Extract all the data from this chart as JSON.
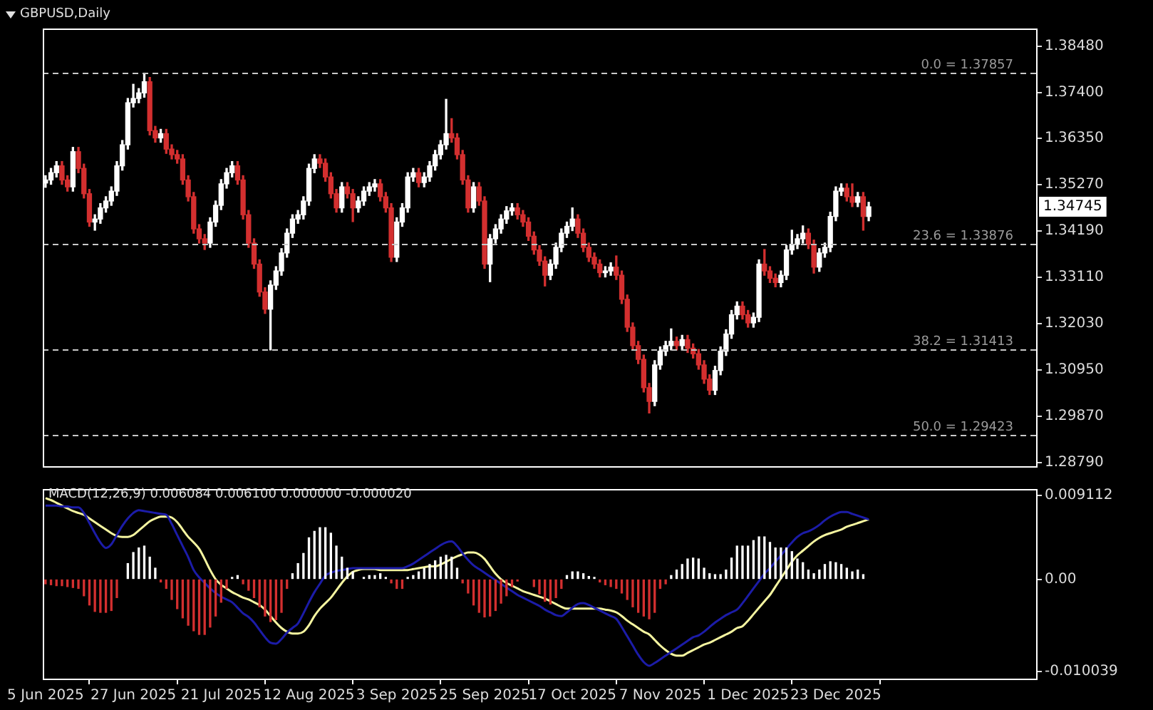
{
  "chart_data": [
    {
      "type": "candlestick",
      "title": "GBPUSD,Daily",
      "categories": [
        null,
        null,
        null,
        null,
        null,
        null,
        null,
        null,
        null,
        null,
        null,
        null,
        null,
        null,
        null,
        null,
        null,
        null,
        null,
        null,
        null,
        null,
        null,
        null,
        null,
        null,
        null,
        null,
        null,
        null,
        null,
        null,
        null,
        null,
        null,
        null,
        null,
        null,
        null,
        null,
        null,
        null,
        null,
        null,
        null,
        null,
        null,
        null,
        null,
        null,
        null,
        null,
        null,
        null,
        null,
        null,
        null,
        null,
        null,
        null,
        null,
        null,
        null,
        null,
        null,
        null,
        null,
        null,
        null,
        null,
        null,
        null,
        null,
        null,
        null,
        null,
        null,
        null,
        null,
        null,
        null,
        null,
        null,
        null,
        null,
        null,
        null,
        null,
        null,
        null,
        null,
        null,
        null,
        null,
        null,
        null,
        null,
        null,
        null,
        null,
        null,
        null,
        null,
        null,
        null,
        null,
        null,
        null,
        null,
        null,
        null,
        null,
        null,
        null,
        null,
        null,
        null,
        null,
        null,
        null,
        null,
        null,
        null,
        null,
        null,
        null,
        null,
        null,
        null,
        null,
        null,
        null,
        null,
        null,
        null,
        null,
        null,
        null,
        null,
        null,
        null,
        null,
        null,
        null,
        null,
        null,
        null,
        null,
        null,
        null,
        null,
        null,
        null,
        null,
        null,
        null,
        null,
        null,
        null,
        null,
        null,
        null,
        null,
        null,
        null,
        null,
        null,
        null,
        null,
        null,
        null,
        null,
        null,
        null,
        null,
        null,
        null,
        null,
        null,
        null,
        null
      ],
      "ohlc": [
        [
          1.353,
          1.3547,
          1.352,
          1.3537
        ],
        [
          1.3537,
          1.3564,
          1.3527,
          1.3554
        ],
        [
          1.3554,
          1.358,
          1.3544,
          1.357
        ],
        [
          1.357,
          1.358,
          1.3527,
          1.3537
        ],
        [
          1.3537,
          1.3547,
          1.3511,
          1.3521
        ],
        [
          1.3521,
          1.3613,
          1.3511,
          1.3603
        ],
        [
          1.3603,
          1.3613,
          1.3554,
          1.3564
        ],
        [
          1.3564,
          1.3574,
          1.3495,
          1.3505
        ],
        [
          1.3505,
          1.3515,
          1.3429,
          1.3439
        ],
        [
          1.3439,
          1.3456,
          1.342,
          1.3446
        ],
        [
          1.3446,
          1.3482,
          1.3436,
          1.3472
        ],
        [
          1.3472,
          1.3498,
          1.3462,
          1.3488
        ],
        [
          1.3488,
          1.3521,
          1.3478,
          1.3511
        ],
        [
          1.3511,
          1.358,
          1.3501,
          1.357
        ],
        [
          1.357,
          1.3629,
          1.356,
          1.3619
        ],
        [
          1.3619,
          1.3727,
          1.3609,
          1.3717
        ],
        [
          1.3717,
          1.376,
          1.3707,
          1.3727
        ],
        [
          1.3727,
          1.375,
          1.3717,
          1.374
        ],
        [
          1.374,
          1.3786,
          1.373,
          1.3766
        ],
        [
          1.3766,
          1.3776,
          1.3642,
          1.3652
        ],
        [
          1.3652,
          1.3662,
          1.3625,
          1.3635
        ],
        [
          1.3635,
          1.3655,
          1.3625,
          1.3645
        ],
        [
          1.3645,
          1.3655,
          1.3599,
          1.3609
        ],
        [
          1.3609,
          1.3619,
          1.3586,
          1.3596
        ],
        [
          1.3596,
          1.3606,
          1.3576,
          1.3586
        ],
        [
          1.3586,
          1.3596,
          1.3527,
          1.3537
        ],
        [
          1.3537,
          1.3547,
          1.3488,
          1.3498
        ],
        [
          1.3498,
          1.3508,
          1.3413,
          1.3423
        ],
        [
          1.3423,
          1.3433,
          1.339,
          1.34
        ],
        [
          1.34,
          1.341,
          1.3375,
          1.339
        ],
        [
          1.339,
          1.3449,
          1.338,
          1.3439
        ],
        [
          1.3439,
          1.3488,
          1.3429,
          1.3478
        ],
        [
          1.3478,
          1.3538,
          1.3468,
          1.3528
        ],
        [
          1.3528,
          1.3564,
          1.3518,
          1.3554
        ],
        [
          1.3554,
          1.358,
          1.3544,
          1.357
        ],
        [
          1.357,
          1.358,
          1.3527,
          1.3537
        ],
        [
          1.3537,
          1.3547,
          1.3446,
          1.3456
        ],
        [
          1.3456,
          1.3466,
          1.338,
          1.339
        ],
        [
          1.339,
          1.34,
          1.3331,
          1.3341
        ],
        [
          1.3341,
          1.3351,
          1.3266,
          1.3276
        ],
        [
          1.3276,
          1.3286,
          1.3226,
          1.3236
        ],
        [
          1.3236,
          1.3302,
          1.3141,
          1.3292
        ],
        [
          1.3292,
          1.3335,
          1.3282,
          1.3325
        ],
        [
          1.3325,
          1.3377,
          1.3315,
          1.3367
        ],
        [
          1.3367,
          1.3423,
          1.3357,
          1.3413
        ],
        [
          1.3413,
          1.3456,
          1.3403,
          1.3446
        ],
        [
          1.3446,
          1.3466,
          1.3436,
          1.3456
        ],
        [
          1.3456,
          1.3498,
          1.3446,
          1.3488
        ],
        [
          1.3488,
          1.3574,
          1.3478,
          1.3564
        ],
        [
          1.3564,
          1.3596,
          1.3554,
          1.3586
        ],
        [
          1.3586,
          1.3596,
          1.3566,
          1.3576
        ],
        [
          1.3576,
          1.3586,
          1.3534,
          1.3544
        ],
        [
          1.3544,
          1.3554,
          1.3495,
          1.3505
        ],
        [
          1.3505,
          1.3515,
          1.3462,
          1.3472
        ],
        [
          1.3472,
          1.3531,
          1.3462,
          1.3521
        ],
        [
          1.3521,
          1.3531,
          1.3495,
          1.3505
        ],
        [
          1.3505,
          1.3515,
          1.344,
          1.3472
        ],
        [
          1.3472,
          1.3498,
          1.3462,
          1.3488
        ],
        [
          1.3488,
          1.3521,
          1.3478,
          1.3511
        ],
        [
          1.3511,
          1.3531,
          1.3501,
          1.3521
        ],
        [
          1.3521,
          1.3538,
          1.3511,
          1.3528
        ],
        [
          1.3528,
          1.3538,
          1.3488,
          1.3498
        ],
        [
          1.3498,
          1.3508,
          1.3462,
          1.3472
        ],
        [
          1.3472,
          1.3482,
          1.3347,
          1.3357
        ],
        [
          1.3357,
          1.3449,
          1.3347,
          1.3439
        ],
        [
          1.3439,
          1.3482,
          1.3429,
          1.3472
        ],
        [
          1.3472,
          1.3554,
          1.3462,
          1.3544
        ],
        [
          1.3544,
          1.3564,
          1.3534,
          1.3554
        ],
        [
          1.3554,
          1.3564,
          1.3521,
          1.3531
        ],
        [
          1.3531,
          1.3554,
          1.3521,
          1.3544
        ],
        [
          1.3544,
          1.358,
          1.3534,
          1.357
        ],
        [
          1.357,
          1.3606,
          1.356,
          1.3596
        ],
        [
          1.3596,
          1.3629,
          1.3586,
          1.3619
        ],
        [
          1.3619,
          1.3725,
          1.3609,
          1.3645
        ],
        [
          1.3645,
          1.368,
          1.3625,
          1.3635
        ],
        [
          1.3635,
          1.3645,
          1.3586,
          1.3596
        ],
        [
          1.3596,
          1.3606,
          1.3527,
          1.3537
        ],
        [
          1.3537,
          1.3547,
          1.3462,
          1.3472
        ],
        [
          1.3472,
          1.3531,
          1.3462,
          1.3521
        ],
        [
          1.3521,
          1.3531,
          1.3478,
          1.3488
        ],
        [
          1.3488,
          1.3498,
          1.3331,
          1.3341
        ],
        [
          1.3341,
          1.341,
          1.33,
          1.34
        ],
        [
          1.34,
          1.3433,
          1.339,
          1.3423
        ],
        [
          1.3423,
          1.3456,
          1.3413,
          1.3446
        ],
        [
          1.3446,
          1.3475,
          1.3436,
          1.3465
        ],
        [
          1.3465,
          1.3482,
          1.3455,
          1.3472
        ],
        [
          1.3472,
          1.3482,
          1.3446,
          1.3456
        ],
        [
          1.3456,
          1.3466,
          1.3429,
          1.3439
        ],
        [
          1.3439,
          1.3449,
          1.3396,
          1.3406
        ],
        [
          1.3406,
          1.3416,
          1.3364,
          1.3374
        ],
        [
          1.3374,
          1.3384,
          1.3338,
          1.3348
        ],
        [
          1.3348,
          1.3358,
          1.329,
          1.3315
        ],
        [
          1.3315,
          1.3351,
          1.3305,
          1.3341
        ],
        [
          1.3341,
          1.339,
          1.3331,
          1.338
        ],
        [
          1.338,
          1.3423,
          1.337,
          1.3413
        ],
        [
          1.3413,
          1.3439,
          1.3403,
          1.3429
        ],
        [
          1.3429,
          1.3472,
          1.3419,
          1.3446
        ],
        [
          1.3446,
          1.3456,
          1.3403,
          1.3413
        ],
        [
          1.3413,
          1.3423,
          1.337,
          1.338
        ],
        [
          1.338,
          1.339,
          1.3347,
          1.3357
        ],
        [
          1.3357,
          1.3367,
          1.3331,
          1.3341
        ],
        [
          1.3341,
          1.3351,
          1.3311,
          1.3321
        ],
        [
          1.3321,
          1.3335,
          1.3311,
          1.3325
        ],
        [
          1.3325,
          1.3344,
          1.3315,
          1.3334
        ],
        [
          1.3334,
          1.336,
          1.3305,
          1.3315
        ],
        [
          1.3315,
          1.3325,
          1.3249,
          1.3259
        ],
        [
          1.3259,
          1.3269,
          1.3184,
          1.3194
        ],
        [
          1.3194,
          1.3204,
          1.3141,
          1.3151
        ],
        [
          1.3151,
          1.3161,
          1.3109,
          1.3119
        ],
        [
          1.3119,
          1.3129,
          1.3043,
          1.3053
        ],
        [
          1.3053,
          1.3063,
          1.2994,
          1.3021
        ],
        [
          1.3021,
          1.3116,
          1.3011,
          1.3106
        ],
        [
          1.3106,
          1.3148,
          1.3096,
          1.3138
        ],
        [
          1.3138,
          1.3161,
          1.3128,
          1.3151
        ],
        [
          1.3151,
          1.319,
          1.3141,
          1.3161
        ],
        [
          1.3161,
          1.3171,
          1.3141,
          1.3151
        ],
        [
          1.3151,
          1.3175,
          1.3141,
          1.3165
        ],
        [
          1.3165,
          1.3175,
          1.3135,
          1.3145
        ],
        [
          1.3145,
          1.3155,
          1.3122,
          1.3132
        ],
        [
          1.3132,
          1.3142,
          1.3096,
          1.3106
        ],
        [
          1.3106,
          1.3116,
          1.3063,
          1.3073
        ],
        [
          1.3073,
          1.3083,
          1.3037,
          1.3047
        ],
        [
          1.3047,
          1.3103,
          1.3037,
          1.3093
        ],
        [
          1.3093,
          1.3148,
          1.3083,
          1.3138
        ],
        [
          1.3138,
          1.3188,
          1.3128,
          1.3178
        ],
        [
          1.3178,
          1.3233,
          1.3168,
          1.3223
        ],
        [
          1.3223,
          1.3253,
          1.3213,
          1.3243
        ],
        [
          1.3243,
          1.3253,
          1.3213,
          1.3223
        ],
        [
          1.3223,
          1.3233,
          1.3194,
          1.3204
        ],
        [
          1.3204,
          1.3227,
          1.3194,
          1.3217
        ],
        [
          1.3217,
          1.3351,
          1.3207,
          1.3341
        ],
        [
          1.3341,
          1.3375,
          1.3315,
          1.3325
        ],
        [
          1.3325,
          1.3335,
          1.3298,
          1.3308
        ],
        [
          1.3308,
          1.3318,
          1.3288,
          1.3298
        ],
        [
          1.3298,
          1.3325,
          1.3288,
          1.3315
        ],
        [
          1.3315,
          1.3384,
          1.3305,
          1.3374
        ],
        [
          1.3374,
          1.342,
          1.3364,
          1.3387
        ],
        [
          1.3387,
          1.341,
          1.3377,
          1.34
        ],
        [
          1.34,
          1.343,
          1.339,
          1.3413
        ],
        [
          1.3413,
          1.3423,
          1.3377,
          1.3387
        ],
        [
          1.3387,
          1.3397,
          1.332,
          1.3334
        ],
        [
          1.3334,
          1.3377,
          1.3324,
          1.3367
        ],
        [
          1.3367,
          1.339,
          1.3357,
          1.338
        ],
        [
          1.338,
          1.3462,
          1.337,
          1.3452
        ],
        [
          1.3452,
          1.3521,
          1.3442,
          1.3511
        ],
        [
          1.3511,
          1.3528,
          1.3501,
          1.3518
        ],
        [
          1.3518,
          1.3528,
          1.3488,
          1.3498
        ],
        [
          1.3498,
          1.3528,
          1.3475,
          1.3485
        ],
        [
          1.3485,
          1.3508,
          1.3475,
          1.3498
        ],
        [
          1.3498,
          1.3508,
          1.342,
          1.3452
        ],
        [
          1.3452,
          1.3485,
          1.3442,
          1.34745
        ],
        null,
        null,
        null,
        null,
        null,
        null,
        null,
        null,
        null,
        null,
        null,
        null,
        null,
        null,
        null,
        null,
        null,
        null,
        null,
        null,
        null,
        null,
        null,
        null,
        null,
        null,
        null,
        null,
        null,
        null
      ],
      "colors": [
        "#ffffff",
        "#ffffff",
        "#ffffff",
        "#d32f2f",
        "#d32f2f",
        "#ffffff",
        "#d32f2f",
        "#d32f2f",
        "#d32f2f",
        "#ffffff",
        "#ffffff",
        "#ffffff",
        "#ffffff",
        "#ffffff",
        "#ffffff",
        "#ffffff",
        "#ffffff",
        "#ffffff",
        "#ffffff",
        "#d32f2f",
        "#d32f2f",
        "#ffffff",
        "#d32f2f",
        "#d32f2f",
        "#d32f2f",
        "#d32f2f",
        "#d32f2f",
        "#d32f2f",
        "#d32f2f",
        "#d32f2f",
        "#ffffff",
        "#ffffff",
        "#ffffff",
        "#ffffff",
        "#ffffff",
        "#d32f2f",
        "#d32f2f",
        "#d32f2f",
        "#d32f2f",
        "#d32f2f",
        "#d32f2f",
        "#ffffff",
        "#ffffff",
        "#ffffff",
        "#ffffff",
        "#ffffff",
        "#ffffff",
        "#ffffff",
        "#ffffff",
        "#ffffff",
        "#d32f2f",
        "#d32f2f",
        "#d32f2f",
        "#d32f2f",
        "#ffffff",
        "#d32f2f",
        "#d32f2f",
        "#ffffff",
        "#ffffff",
        "#ffffff",
        "#ffffff",
        "#d32f2f",
        "#d32f2f",
        "#d32f2f",
        "#ffffff",
        "#ffffff",
        "#ffffff",
        "#ffffff",
        "#d32f2f",
        "#ffffff",
        "#ffffff",
        "#ffffff",
        "#ffffff",
        "#ffffff",
        "#d32f2f",
        "#d32f2f",
        "#d32f2f",
        "#d32f2f",
        "#ffffff",
        "#d32f2f",
        "#d32f2f",
        "#ffffff",
        "#ffffff",
        "#ffffff",
        "#ffffff",
        "#ffffff",
        "#d32f2f",
        "#d32f2f",
        "#d32f2f",
        "#d32f2f",
        "#d32f2f",
        "#d32f2f",
        "#ffffff",
        "#ffffff",
        "#ffffff",
        "#ffffff",
        "#ffffff",
        "#d32f2f",
        "#d32f2f",
        "#d32f2f",
        "#d32f2f",
        "#d32f2f",
        "#ffffff",
        "#ffffff",
        "#d32f2f",
        "#d32f2f",
        "#d32f2f",
        "#d32f2f",
        "#d32f2f",
        "#d32f2f",
        "#d32f2f",
        "#ffffff",
        "#ffffff",
        "#ffffff",
        "#ffffff",
        "#d32f2f",
        "#ffffff",
        "#d32f2f",
        "#d32f2f",
        "#d32f2f",
        "#d32f2f",
        "#d32f2f",
        "#ffffff",
        "#ffffff",
        "#ffffff",
        "#ffffff",
        "#ffffff",
        "#d32f2f",
        "#d32f2f",
        "#ffffff",
        "#ffffff",
        "#d32f2f",
        "#d32f2f",
        "#d32f2f",
        "#ffffff",
        "#ffffff",
        "#ffffff",
        "#ffffff",
        "#ffffff",
        "#d32f2f",
        "#d32f2f",
        "#ffffff",
        "#ffffff",
        "#ffffff",
        "#ffffff",
        "#ffffff",
        "#d32f2f",
        "#d32f2f",
        "#ffffff",
        "#d32f2f",
        "#ffffff",
        null,
        null,
        null,
        null,
        null,
        null,
        null,
        null,
        null,
        null,
        null,
        null,
        null,
        null,
        null,
        null,
        null,
        null,
        null,
        null,
        null,
        null,
        null,
        null,
        null,
        null,
        null,
        null,
        null,
        null
      ],
      "ylim": [
        1.287,
        1.389
      ],
      "yticks": [
        {
          "value": 1.3848,
          "label": "1.38480"
        },
        {
          "value": 1.374,
          "label": "1.37400"
        },
        {
          "value": 1.3635,
          "label": "1.36350"
        },
        {
          "value": 1.3527,
          "label": "1.35270"
        },
        {
          "value": 1.3419,
          "label": "1.34190"
        },
        {
          "value": 1.3311,
          "label": "1.33110"
        },
        {
          "value": 1.3203,
          "label": "1.32030"
        },
        {
          "value": 1.3095,
          "label": "1.30950"
        },
        {
          "value": 1.2987,
          "label": "1.29870"
        },
        {
          "value": 1.2879,
          "label": "1.28790"
        }
      ],
      "tick_labels": "y",
      "ref_lines": [
        {
          "axis": "y",
          "value": 1.37857,
          "label": "0.0 = 1.37857",
          "color": "#c8c8c8",
          "line_style": "dashed"
        },
        {
          "axis": "y",
          "value": 1.33876,
          "label": "23.6 = 1.33876",
          "color": "#c8c8c8",
          "line_style": "dashed"
        },
        {
          "axis": "y",
          "value": 1.31413,
          "label": "38.2 = 1.31413",
          "color": "#c8c8c8",
          "line_style": "dashed"
        },
        {
          "axis": "y",
          "value": 1.29423,
          "label": "50.0 = 1.29423",
          "color": "#c8c8c8",
          "line_style": "dashed"
        }
      ],
      "annotations": [
        "1.34745"
      ]
    },
    {
      "type": "bar",
      "title": "MACD(12,26,9) 0.006084 0.006100 0.000000 -0.000020",
      "categories": [
        "5 Jun 2025",
        null,
        null,
        null,
        null,
        null,
        null,
        null,
        null,
        null,
        null,
        null,
        null,
        null,
        null,
        null,
        "27 Jun 2025",
        null,
        null,
        null,
        null,
        null,
        null,
        null,
        null,
        null,
        null,
        null,
        null,
        null,
        null,
        null,
        "21 Jul 2025",
        null,
        null,
        null,
        null,
        null,
        null,
        null,
        null,
        null,
        null,
        null,
        null,
        null,
        null,
        null,
        "12 Aug 2025",
        null,
        null,
        null,
        null,
        null,
        null,
        null,
        null,
        null,
        null,
        null,
        null,
        null,
        null,
        null,
        "3 Sep 2025",
        null,
        null,
        null,
        null,
        null,
        null,
        null,
        null,
        null,
        null,
        null,
        null,
        null,
        null,
        null,
        "25 Sep 2025",
        null,
        null,
        null,
        null,
        null,
        null,
        null,
        null,
        null,
        null,
        null,
        null,
        null,
        null,
        null,
        "17 Oct 2025",
        null,
        null,
        null,
        null,
        null,
        null,
        null,
        null,
        null,
        null,
        null,
        null,
        null,
        null,
        null,
        "7 Nov 2025",
        null,
        null,
        null,
        null,
        null,
        null,
        null,
        null,
        null,
        null,
        null,
        null,
        null,
        null,
        null,
        "1 Dec 2025",
        null,
        null,
        null,
        null,
        null,
        null,
        null,
        null,
        null,
        null,
        null,
        null,
        null,
        null,
        null,
        "23 Dec 2025",
        null,
        null,
        null,
        null,
        null,
        null,
        null,
        null,
        null,
        null,
        null,
        null,
        null,
        null,
        null,
        null,
        null,
        null,
        null,
        null,
        null,
        null,
        null,
        null,
        null,
        null,
        null,
        null,
        null,
        null,
        null,
        null,
        null,
        null,
        null,
        null
      ],
      "series": [
        {
          "type": "bar",
          "color": "#ffffff",
          "values": [
            null,
            null,
            null,
            null,
            null,
            null,
            null,
            null,
            null,
            null,
            null,
            null,
            null,
            null,
            null,
            0.0017,
            0.0029,
            0.0034,
            0.0036,
            0.0024,
            0.0012,
            null,
            null,
            null,
            null,
            null,
            null,
            null,
            null,
            null,
            null,
            null,
            null,
            null,
            0.0002,
            0.0004,
            null,
            null,
            null,
            null,
            null,
            null,
            null,
            null,
            null,
            0.0006,
            0.0017,
            0.0028,
            0.0045,
            0.0052,
            0.0056,
            0.0056,
            0.005,
            0.0036,
            0.0024,
            0.0012,
            0.0008,
            null,
            0.0002,
            0.0004,
            0.0004,
            0.0006,
            0.0002,
            null,
            null,
            null,
            0.0002,
            0.0004,
            0.0008,
            0.0012,
            0.0016,
            0.002,
            0.0024,
            0.0026,
            0.0024,
            0.0012,
            null,
            null,
            null,
            null,
            null,
            null,
            null,
            null,
            null,
            null,
            null,
            null,
            null,
            null,
            null,
            null,
            null,
            null,
            null,
            0.0004,
            0.0008,
            0.0008,
            0.0006,
            0.0003,
            0.0002,
            null,
            null,
            null,
            null,
            null,
            null,
            null,
            null,
            null,
            null,
            null,
            null,
            null,
            0.0004,
            0.001,
            0.0016,
            0.0022,
            0.0023,
            0.0022,
            0.0012,
            0.0006,
            0.0005,
            0.0005,
            0.001,
            0.0023,
            0.0036,
            0.0036,
            0.0036,
            0.0042,
            0.0046,
            0.0046,
            0.004,
            0.0034,
            0.0034,
            0.0034,
            0.003,
            0.0022,
            0.0018,
            0.001,
            0.0006,
            0.001,
            0.0016,
            0.0019,
            0.0018,
            0.0016,
            0.0012,
            0.0008,
            0.001,
            0.0005,
            null,
            null,
            null,
            null,
            null,
            null,
            null,
            null,
            null,
            null,
            null,
            null,
            null,
            null,
            null,
            null,
            null,
            null,
            null,
            null,
            null,
            null,
            null,
            null,
            null,
            null,
            null,
            null,
            null,
            null,
            null
          ]
        },
        {
          "type": "bar",
          "color": "#d32f2f",
          "values": [
            -0.0005,
            -0.0006,
            -0.0007,
            -0.0007,
            -0.0008,
            -0.0009,
            -0.001,
            -0.0018,
            -0.0028,
            -0.0035,
            -0.0036,
            -0.0036,
            -0.0034,
            -0.002,
            null,
            null,
            null,
            null,
            null,
            null,
            null,
            -0.0003,
            -0.001,
            -0.0022,
            -0.0032,
            -0.0042,
            -0.005,
            -0.0056,
            -0.006,
            -0.006,
            -0.0052,
            -0.004,
            -0.0025,
            -0.001,
            null,
            null,
            -0.0005,
            -0.0012,
            -0.002,
            -0.003,
            -0.004,
            -0.0046,
            -0.0044,
            -0.0036,
            -0.001,
            null,
            null,
            null,
            null,
            null,
            null,
            null,
            null,
            null,
            null,
            null,
            null,
            null,
            null,
            null,
            null,
            null,
            null,
            -0.0004,
            -0.001,
            -0.001,
            null,
            null,
            null,
            null,
            null,
            null,
            null,
            null,
            null,
            null,
            -0.0004,
            -0.0015,
            -0.0028,
            -0.0036,
            -0.0041,
            -0.004,
            -0.0034,
            -0.0026,
            -0.0018,
            -0.0008,
            -0.0002,
            null,
            null,
            -0.0008,
            -0.0016,
            -0.0024,
            -0.0027,
            -0.002,
            -0.001,
            null,
            null,
            null,
            null,
            null,
            null,
            -0.0003,
            -0.0006,
            -0.0008,
            -0.001,
            -0.0015,
            -0.0022,
            -0.003,
            -0.0036,
            -0.004,
            -0.0043,
            -0.0036,
            -0.001,
            -0.0005,
            null,
            null,
            null,
            null,
            null,
            null,
            null,
            null,
            null,
            null,
            null,
            null,
            null,
            null,
            null,
            null,
            null,
            null,
            null,
            null,
            null,
            null,
            null,
            null,
            null,
            null,
            null,
            null,
            null,
            null,
            null,
            null,
            null,
            null,
            null,
            null,
            null,
            null,
            null,
            null,
            null,
            null,
            null,
            null,
            null,
            null,
            null,
            null,
            null,
            null,
            null,
            null,
            null,
            null,
            null,
            null,
            null,
            null,
            null,
            null,
            null,
            null,
            null,
            null,
            null,
            null,
            null
          ]
        },
        {
          "type": "line",
          "color": "#1c1ca8",
          "values": [
            0.008,
            0.008,
            0.008,
            0.0079,
            0.0079,
            0.0078,
            0.0078,
            0.0072,
            0.0061,
            0.005,
            0.004,
            0.0034,
            0.0038,
            0.0048,
            0.0058,
            0.0066,
            0.0072,
            0.0075,
            0.0074,
            0.0073,
            0.0072,
            0.0071,
            0.007,
            0.006,
            0.0048,
            0.0036,
            0.0024,
            0.001,
            0.0002,
            -0.0004,
            -0.001,
            -0.0015,
            -0.0019,
            -0.0022,
            -0.0025,
            -0.0031,
            -0.0037,
            -0.0041,
            -0.0047,
            -0.0055,
            -0.0063,
            -0.0069,
            -0.007,
            -0.0065,
            -0.0058,
            -0.0053,
            -0.0048,
            -0.0037,
            -0.0025,
            -0.0014,
            -0.0005,
            0.0004,
            0.0007,
            0.0009,
            0.001,
            0.0011,
            0.0012,
            0.0012,
            0.0012,
            0.0012,
            0.0012,
            0.0012,
            0.0012,
            0.0012,
            0.0012,
            0.0012,
            0.0014,
            0.0017,
            0.0021,
            0.0025,
            0.0029,
            0.0033,
            0.0037,
            0.004,
            0.0041,
            0.0036,
            0.0028,
            0.0021,
            0.0015,
            0.0011,
            0.0007,
            0.0003,
            -0.0001,
            -0.0005,
            -0.0009,
            -0.0013,
            -0.0017,
            -0.002,
            -0.0023,
            -0.0026,
            -0.0029,
            -0.0033,
            -0.0036,
            -0.0039,
            -0.004,
            -0.0036,
            -0.0031,
            -0.0027,
            -0.0026,
            -0.0028,
            -0.0031,
            -0.0034,
            -0.0037,
            -0.004,
            -0.0043,
            -0.0052,
            -0.0062,
            -0.0072,
            -0.0082,
            -0.009,
            -0.0094,
            -0.0091,
            -0.0087,
            -0.0083,
            -0.0079,
            -0.0075,
            -0.0071,
            -0.0067,
            -0.0063,
            -0.0061,
            -0.0057,
            -0.0052,
            -0.0047,
            -0.0043,
            -0.0039,
            -0.0036,
            -0.0033,
            -0.0026,
            -0.0018,
            -0.001,
            -0.0002,
            0.0006,
            0.0012,
            0.0019,
            0.0026,
            0.0033,
            0.004,
            0.0046,
            0.005,
            0.0052,
            0.0055,
            0.0059,
            0.0064,
            0.0068,
            0.0071,
            0.0073,
            0.0073,
            0.0071,
            0.0069,
            0.0067,
            0.0065,
            null,
            null,
            null,
            null,
            null,
            null,
            null,
            null,
            null,
            null,
            null,
            null,
            null,
            null,
            null,
            null,
            null,
            null,
            null,
            null,
            null,
            null,
            null,
            null,
            null,
            null,
            null,
            null,
            null,
            null
          ]
        },
        {
          "type": "line",
          "color": "#f5f5a0",
          "values": [
            0.0088,
            0.0086,
            0.0083,
            0.008,
            0.0077,
            0.0074,
            0.0072,
            0.007,
            0.0066,
            0.0062,
            0.0058,
            0.0054,
            0.005,
            0.0047,
            0.0046,
            0.0046,
            0.0048,
            0.0053,
            0.0058,
            0.0063,
            0.0066,
            0.0068,
            0.0068,
            0.0067,
            0.0062,
            0.0054,
            0.0046,
            0.004,
            0.0033,
            0.0022,
            0.001,
            0.0,
            -0.0006,
            -0.001,
            -0.0014,
            -0.0017,
            -0.002,
            -0.0022,
            -0.0025,
            -0.0028,
            -0.0033,
            -0.004,
            -0.0047,
            -0.0053,
            -0.0057,
            -0.0059,
            -0.0059,
            -0.0057,
            -0.005,
            -0.004,
            -0.0032,
            -0.0026,
            -0.002,
            -0.0012,
            -0.0004,
            0.0003,
            0.0008,
            0.001,
            0.0011,
            0.0011,
            0.0011,
            0.001,
            0.001,
            0.001,
            0.001,
            0.001,
            0.001,
            0.0011,
            0.0012,
            0.0013,
            0.0014,
            0.0014,
            0.0016,
            0.0019,
            0.0022,
            0.0025,
            0.0027,
            0.0029,
            0.0029,
            0.0027,
            0.0022,
            0.0014,
            0.0006,
            0.0,
            -0.0004,
            -0.0007,
            -0.001,
            -0.0013,
            -0.0015,
            -0.0017,
            -0.0019,
            -0.0021,
            -0.0024,
            -0.0027,
            -0.003,
            -0.0032,
            -0.0032,
            -0.0032,
            -0.0032,
            -0.0032,
            -0.0032,
            -0.0032,
            -0.0033,
            -0.0034,
            -0.0036,
            -0.004,
            -0.0045,
            -0.0049,
            -0.0053,
            -0.0057,
            -0.006,
            -0.0066,
            -0.0072,
            -0.0077,
            -0.0081,
            -0.0083,
            -0.0083,
            -0.008,
            -0.0077,
            -0.0074,
            -0.0071,
            -0.0069,
            -0.0066,
            -0.0063,
            -0.006,
            -0.0057,
            -0.0053,
            -0.0051,
            -0.0045,
            -0.0038,
            -0.0031,
            -0.0024,
            -0.0017,
            -0.0008,
            0.0001,
            0.001,
            0.0019,
            0.0026,
            0.0031,
            0.0036,
            0.0041,
            0.0045,
            0.0048,
            0.005,
            0.0052,
            0.0054,
            0.0057,
            0.0059,
            0.0061,
            0.0063,
            0.0065,
            null,
            null,
            null,
            null,
            null,
            null,
            null,
            null,
            null,
            null,
            null,
            null,
            null,
            null,
            null,
            null,
            null,
            null,
            null,
            null,
            null,
            null,
            null,
            null,
            null,
            null,
            null,
            null,
            null,
            null
          ]
        }
      ],
      "ylim": [
        -0.0108,
        0.0098
      ],
      "yticks": [
        {
          "value": 0.009112,
          "label": "0.009112"
        },
        {
          "value": 0,
          "label": "0.00"
        },
        {
          "value": -0.010039,
          "label": "-0.010039"
        }
      ]
    }
  ]
}
